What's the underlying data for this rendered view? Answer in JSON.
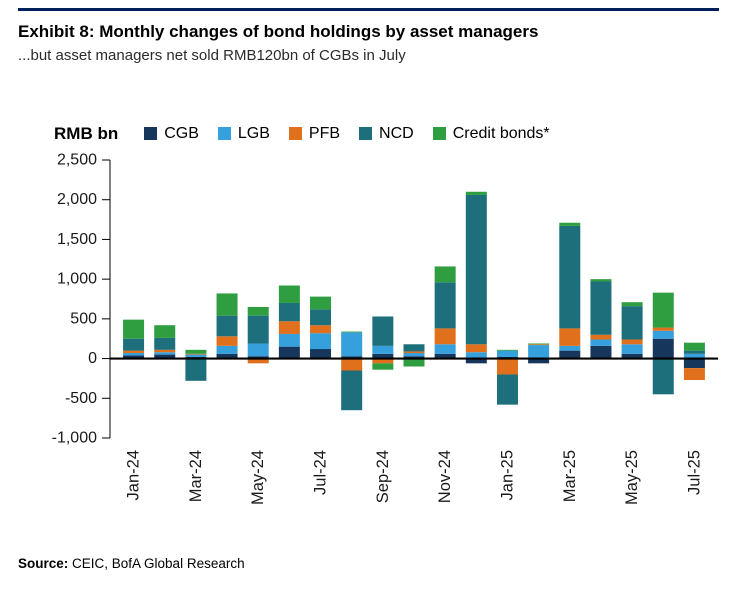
{
  "header": {
    "title": "Exhibit 8: Monthly changes of bond holdings by asset managers",
    "subtitle": "...but asset managers net sold RMB120bn of CGBs in July"
  },
  "source": {
    "prefix": "Source:",
    "text": " CEIC, BofA Global Research"
  },
  "chart_data": {
    "type": "bar",
    "stacked": true,
    "unit_label": "RMB bn",
    "title": "Monthly changes of bond holdings by asset managers (RMB bn)",
    "categories": [
      "Jan-24",
      "Feb-24",
      "Mar-24",
      "Apr-24",
      "May-24",
      "Jun-24",
      "Jul-24",
      "Aug-24",
      "Sep-24",
      "Oct-24",
      "Nov-24",
      "Dec-24",
      "Jan-25",
      "Feb-25",
      "Mar-25",
      "Apr-25",
      "May-25",
      "Jun-25",
      "Jul-25"
    ],
    "xtick_indices": [
      0,
      2,
      4,
      6,
      8,
      10,
      12,
      14,
      16,
      18
    ],
    "xtick_labels": [
      "Jan-24",
      "Mar-24",
      "May-24",
      "Jul-24",
      "Sep-24",
      "Nov-24",
      "Jan-25",
      "Mar-25",
      "May-25",
      "Jul-25"
    ],
    "ylim": [
      -1000,
      2500
    ],
    "yticks": [
      2500,
      2000,
      1500,
      1000,
      500,
      0,
      -500,
      -1000
    ],
    "legend_position": "top",
    "grid": false,
    "series": [
      {
        "name": "CGB",
        "color": "#16365c",
        "values": [
          40,
          50,
          20,
          60,
          30,
          150,
          120,
          30,
          60,
          30,
          60,
          -60,
          20,
          -60,
          100,
          160,
          60,
          250,
          -120
        ]
      },
      {
        "name": "LGB",
        "color": "#35a0dc",
        "values": [
          30,
          30,
          30,
          100,
          160,
          160,
          200,
          300,
          100,
          40,
          120,
          80,
          80,
          170,
          60,
          80,
          120,
          100,
          60
        ]
      },
      {
        "name": "PFB",
        "color": "#e1701d",
        "values": [
          30,
          30,
          10,
          120,
          -60,
          160,
          100,
          -150,
          -60,
          20,
          200,
          100,
          -200,
          10,
          220,
          60,
          60,
          40,
          -150
        ]
      },
      {
        "name": "NCD",
        "color": "#1d6f7c",
        "values": [
          150,
          150,
          -280,
          260,
          350,
          230,
          200,
          -500,
          370,
          90,
          580,
          1880,
          -380,
          0,
          1290,
          670,
          420,
          -450,
          40
        ]
      },
      {
        "name": "Credit bonds*",
        "color": "#2f9e41",
        "values": [
          240,
          160,
          50,
          280,
          110,
          220,
          160,
          10,
          -80,
          -100,
          200,
          40,
          10,
          10,
          40,
          30,
          50,
          440,
          100
        ]
      }
    ]
  }
}
